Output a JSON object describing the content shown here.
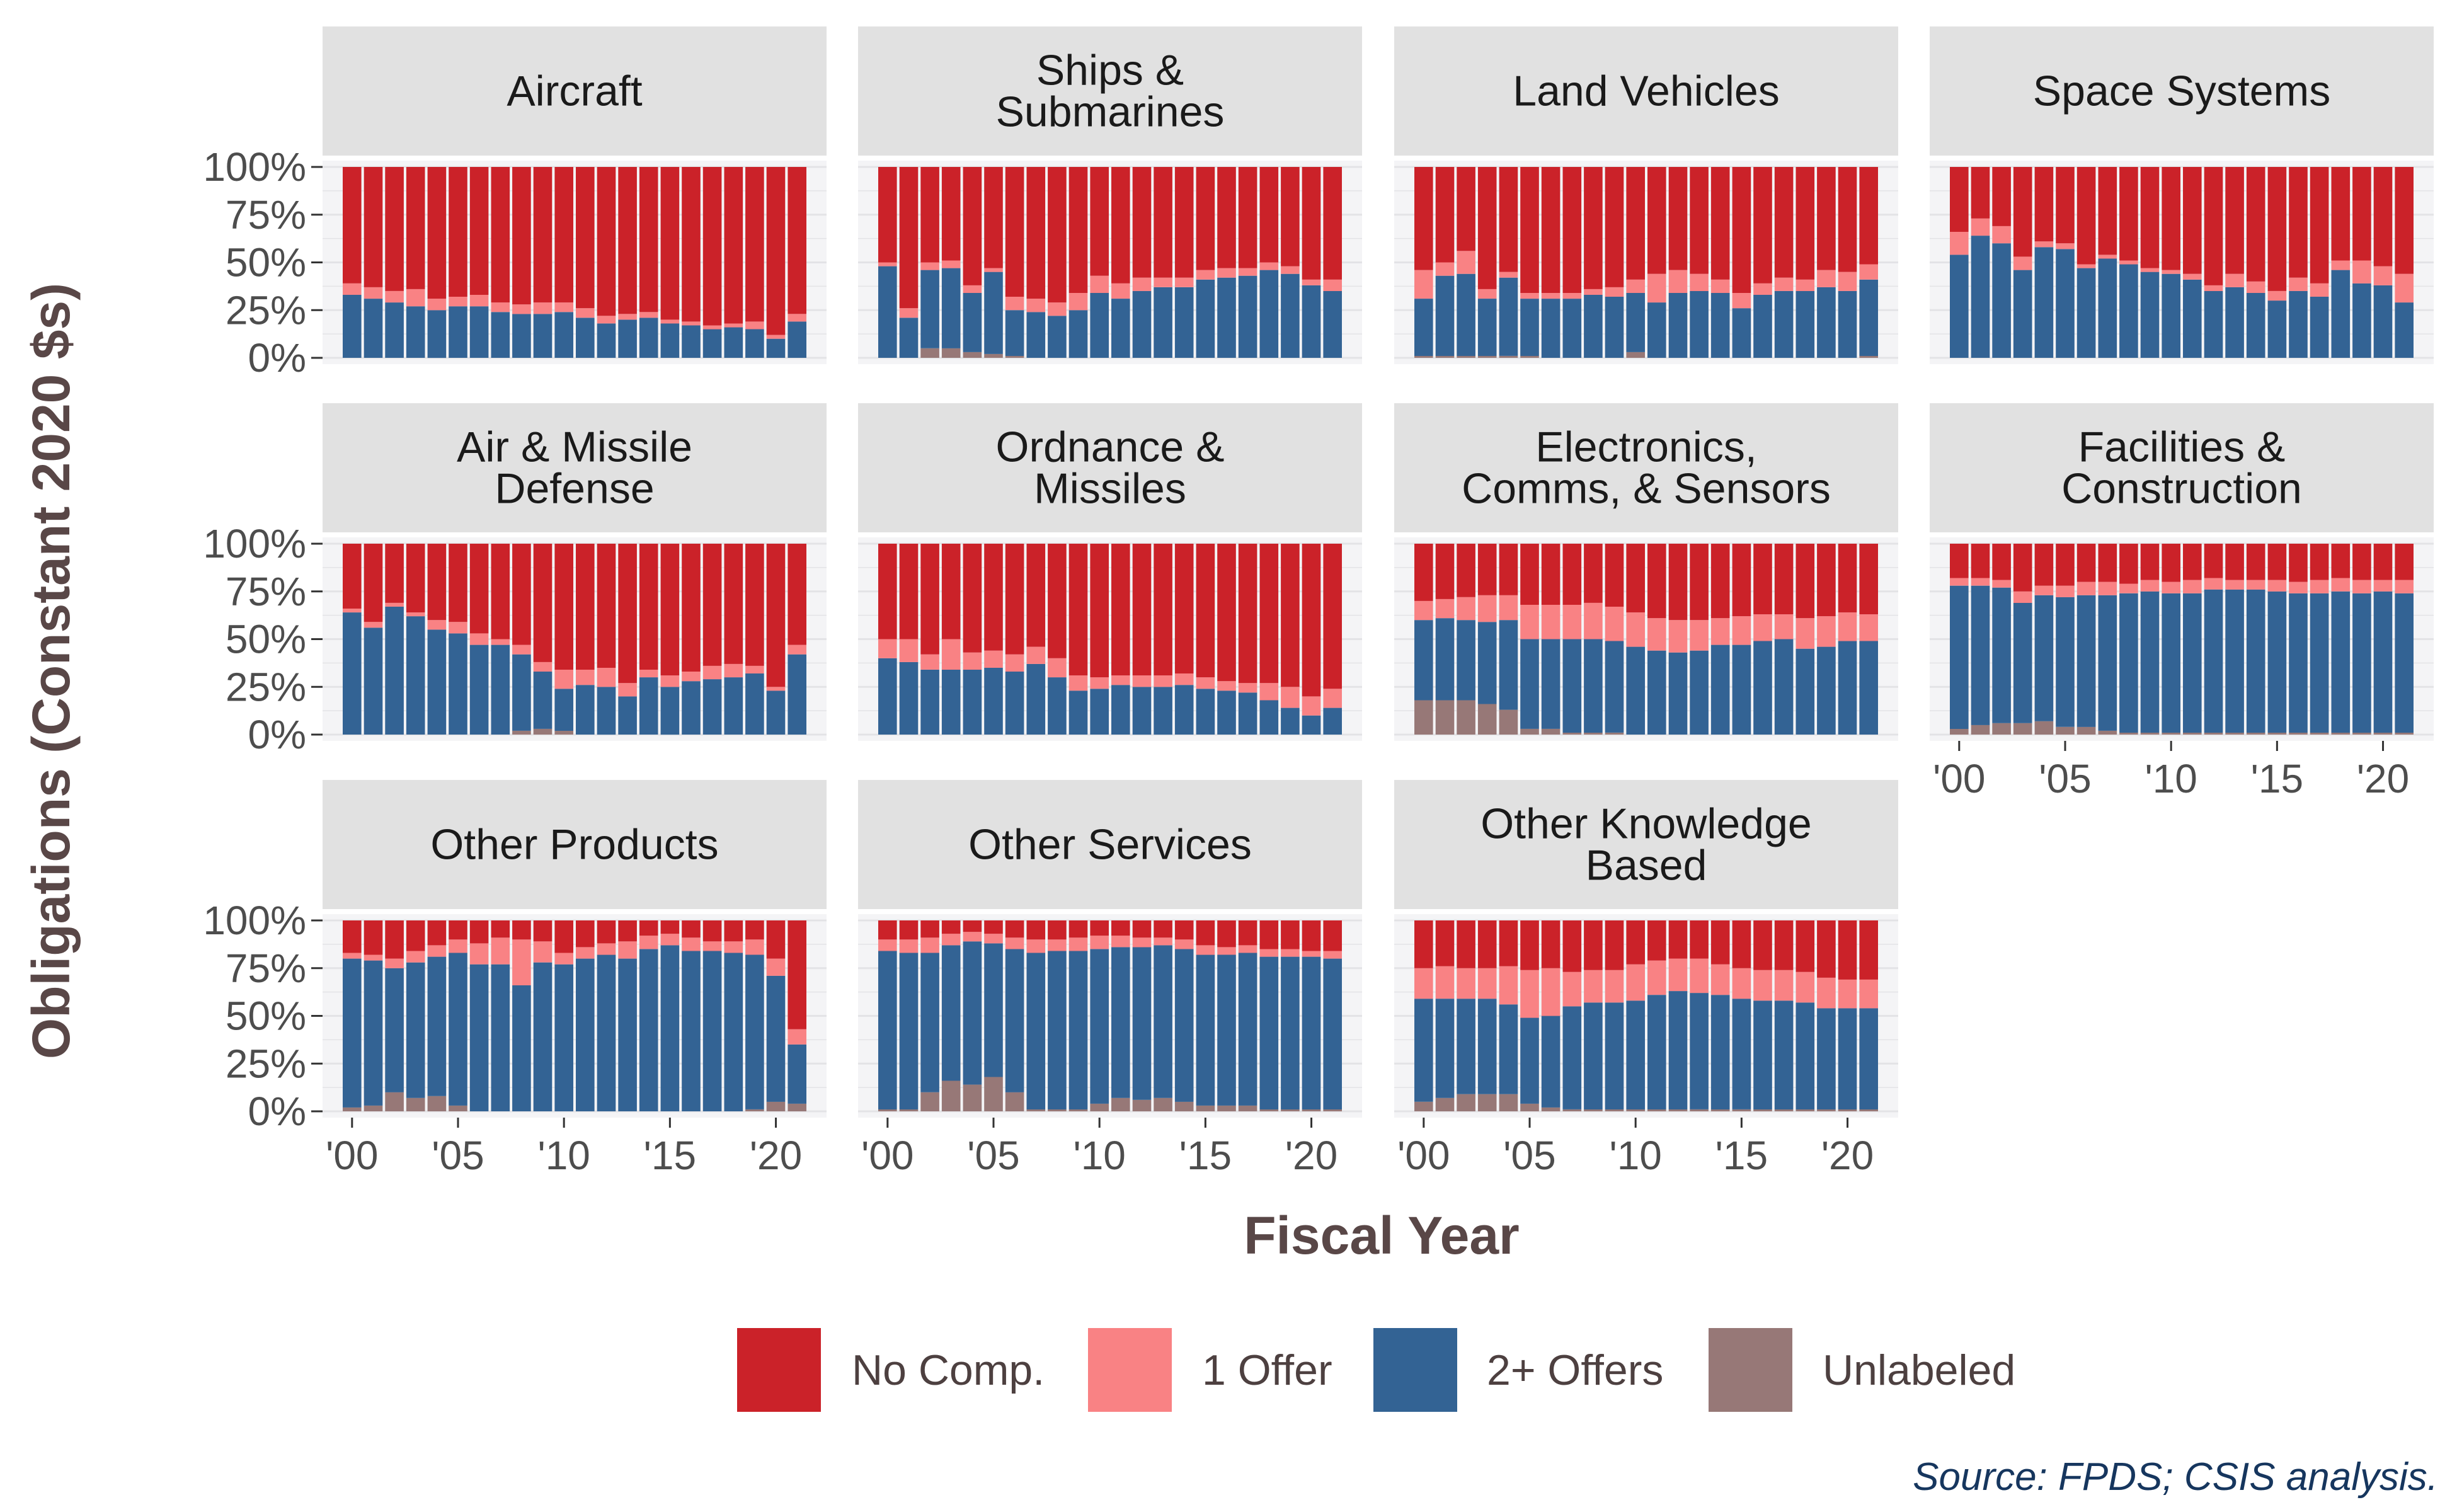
{
  "colors": {
    "no_comp": "#cb2229",
    "one_offer": "#f98284",
    "two_plus": "#336394",
    "unlabeled": "#977877",
    "strip_bg": "#e1e1e1",
    "panel_bg": "#f4f4f6",
    "grid": "#e3e3e6"
  },
  "chart_data": {
    "type": "bar",
    "stacked": true,
    "facets": true,
    "xlabel": "Fiscal Year",
    "ylabel": "Obligations (Constant 2020 $s)",
    "ylim": [
      0,
      1
    ],
    "y_ticks": [
      "0%",
      "25%",
      "50%",
      "75%",
      "100%"
    ],
    "x": [
      2000,
      2001,
      2002,
      2003,
      2004,
      2005,
      2006,
      2007,
      2008,
      2009,
      2010,
      2011,
      2012,
      2013,
      2014,
      2015,
      2016,
      2017,
      2018,
      2019,
      2020,
      2021
    ],
    "x_ticks": [
      "'00",
      "'05",
      "'10",
      "'15",
      "'20"
    ],
    "legend": {
      "position": "bottom",
      "entries": [
        {
          "key": "no_comp",
          "label": "No Comp."
        },
        {
          "key": "one_offer",
          "label": "1 Offer"
        },
        {
          "key": "two_plus",
          "label": "2+ Offers"
        },
        {
          "key": "unlabeled",
          "label": "Unlabeled"
        }
      ]
    },
    "source": "Source: FPDS; CSIS analysis.",
    "series_order_bottom_to_top": [
      "unlabeled",
      "two_plus",
      "one_offer",
      "no_comp"
    ],
    "panels": [
      {
        "title": [
          "Aircraft"
        ],
        "unlabeled": [
          0,
          0,
          0,
          0,
          0,
          0,
          0,
          0,
          0,
          0,
          0,
          0,
          0,
          0,
          0,
          0,
          0,
          0,
          0,
          0,
          0,
          0
        ],
        "two_plus": [
          0.33,
          0.31,
          0.29,
          0.27,
          0.25,
          0.27,
          0.27,
          0.24,
          0.23,
          0.23,
          0.24,
          0.21,
          0.18,
          0.2,
          0.21,
          0.18,
          0.17,
          0.15,
          0.16,
          0.15,
          0.1,
          0.19
        ],
        "one_offer": [
          0.06,
          0.06,
          0.06,
          0.09,
          0.06,
          0.05,
          0.06,
          0.05,
          0.05,
          0.06,
          0.05,
          0.05,
          0.04,
          0.03,
          0.03,
          0.02,
          0.02,
          0.02,
          0.02,
          0.04,
          0.02,
          0.04
        ]
      },
      {
        "title": [
          "Ships &",
          "Submarines"
        ],
        "unlabeled": [
          0,
          0,
          0.05,
          0.05,
          0.03,
          0.02,
          0.01,
          0,
          0,
          0,
          0,
          0,
          0,
          0,
          0,
          0,
          0,
          0,
          0,
          0,
          0,
          0
        ],
        "two_plus": [
          0.48,
          0.21,
          0.41,
          0.42,
          0.31,
          0.43,
          0.24,
          0.24,
          0.22,
          0.25,
          0.34,
          0.31,
          0.35,
          0.37,
          0.37,
          0.41,
          0.42,
          0.43,
          0.46,
          0.44,
          0.38,
          0.35
        ],
        "one_offer": [
          0.02,
          0.05,
          0.04,
          0.04,
          0.04,
          0.02,
          0.07,
          0.07,
          0.07,
          0.09,
          0.09,
          0.08,
          0.07,
          0.05,
          0.05,
          0.05,
          0.05,
          0.04,
          0.04,
          0.04,
          0.03,
          0.06
        ]
      },
      {
        "title": [
          "Land Vehicles"
        ],
        "unlabeled": [
          0.01,
          0.01,
          0.01,
          0.01,
          0.01,
          0.01,
          0,
          0,
          0,
          0,
          0.03,
          0,
          0,
          0,
          0,
          0,
          0,
          0,
          0,
          0,
          0,
          0.01
        ],
        "two_plus": [
          0.3,
          0.42,
          0.43,
          0.3,
          0.41,
          0.3,
          0.31,
          0.31,
          0.33,
          0.32,
          0.31,
          0.29,
          0.34,
          0.35,
          0.34,
          0.26,
          0.33,
          0.35,
          0.35,
          0.37,
          0.35,
          0.4
        ],
        "one_offer": [
          0.15,
          0.07,
          0.12,
          0.05,
          0.03,
          0.03,
          0.03,
          0.03,
          0.03,
          0.05,
          0.07,
          0.15,
          0.12,
          0.09,
          0.07,
          0.08,
          0.06,
          0.07,
          0.06,
          0.09,
          0.1,
          0.08
        ]
      },
      {
        "title": [
          "Space Systems"
        ],
        "unlabeled": [
          0,
          0,
          0,
          0,
          0,
          0,
          0,
          0,
          0,
          0,
          0,
          0,
          0,
          0,
          0,
          0,
          0,
          0,
          0,
          0,
          0,
          0
        ],
        "two_plus": [
          0.54,
          0.64,
          0.6,
          0.46,
          0.58,
          0.57,
          0.47,
          0.52,
          0.49,
          0.45,
          0.44,
          0.41,
          0.35,
          0.37,
          0.34,
          0.3,
          0.35,
          0.32,
          0.46,
          0.39,
          0.38,
          0.29
        ],
        "one_offer": [
          0.12,
          0.09,
          0.09,
          0.07,
          0.03,
          0.03,
          0.02,
          0.02,
          0.02,
          0.02,
          0.02,
          0.03,
          0.03,
          0.07,
          0.06,
          0.05,
          0.07,
          0.07,
          0.05,
          0.12,
          0.1,
          0.15
        ]
      },
      {
        "title": [
          "Air & Missile",
          "Defense"
        ],
        "unlabeled": [
          0,
          0,
          0,
          0,
          0,
          0,
          0,
          0,
          0.02,
          0.03,
          0.02,
          0,
          0,
          0,
          0,
          0,
          0,
          0,
          0,
          0,
          0,
          0
        ],
        "two_plus": [
          0.64,
          0.56,
          0.67,
          0.62,
          0.55,
          0.53,
          0.47,
          0.47,
          0.4,
          0.3,
          0.22,
          0.26,
          0.25,
          0.2,
          0.3,
          0.25,
          0.28,
          0.29,
          0.3,
          0.32,
          0.23,
          0.42
        ],
        "one_offer": [
          0.02,
          0.03,
          0.02,
          0.02,
          0.05,
          0.06,
          0.06,
          0.03,
          0.05,
          0.05,
          0.1,
          0.08,
          0.1,
          0.07,
          0.04,
          0.06,
          0.05,
          0.07,
          0.07,
          0.04,
          0.02,
          0.05
        ]
      },
      {
        "title": [
          "Ordnance &",
          "Missiles"
        ],
        "unlabeled": [
          0,
          0,
          0,
          0,
          0,
          0,
          0,
          0,
          0,
          0,
          0,
          0,
          0,
          0,
          0,
          0,
          0,
          0,
          0,
          0,
          0,
          0
        ],
        "two_plus": [
          0.4,
          0.38,
          0.34,
          0.34,
          0.34,
          0.35,
          0.33,
          0.37,
          0.3,
          0.23,
          0.24,
          0.26,
          0.25,
          0.25,
          0.26,
          0.24,
          0.23,
          0.22,
          0.18,
          0.14,
          0.1,
          0.14
        ],
        "one_offer": [
          0.1,
          0.12,
          0.08,
          0.16,
          0.09,
          0.09,
          0.09,
          0.09,
          0.1,
          0.08,
          0.06,
          0.05,
          0.06,
          0.06,
          0.06,
          0.06,
          0.05,
          0.05,
          0.09,
          0.11,
          0.1,
          0.1
        ]
      },
      {
        "title": [
          "Electronics,",
          "Comms, & Sensors"
        ],
        "unlabeled": [
          0.18,
          0.18,
          0.18,
          0.16,
          0.13,
          0.03,
          0.03,
          0.01,
          0.01,
          0.01,
          0,
          0,
          0,
          0,
          0,
          0,
          0,
          0,
          0,
          0,
          0,
          0
        ],
        "two_plus": [
          0.42,
          0.43,
          0.42,
          0.43,
          0.47,
          0.47,
          0.47,
          0.49,
          0.49,
          0.48,
          0.46,
          0.44,
          0.43,
          0.44,
          0.47,
          0.47,
          0.49,
          0.5,
          0.45,
          0.46,
          0.49,
          0.49
        ],
        "one_offer": [
          0.1,
          0.1,
          0.12,
          0.14,
          0.13,
          0.18,
          0.18,
          0.18,
          0.19,
          0.18,
          0.18,
          0.17,
          0.17,
          0.16,
          0.14,
          0.15,
          0.14,
          0.13,
          0.16,
          0.16,
          0.15,
          0.14
        ]
      },
      {
        "title": [
          "Facilities &",
          "Construction"
        ],
        "unlabeled": [
          0.03,
          0.05,
          0.06,
          0.06,
          0.07,
          0.04,
          0.04,
          0.02,
          0.01,
          0.01,
          0.01,
          0.01,
          0.01,
          0.01,
          0.01,
          0.01,
          0.01,
          0.01,
          0.01,
          0.01,
          0.01,
          0.01
        ],
        "two_plus": [
          0.75,
          0.73,
          0.71,
          0.63,
          0.66,
          0.68,
          0.69,
          0.71,
          0.73,
          0.74,
          0.73,
          0.73,
          0.75,
          0.75,
          0.75,
          0.74,
          0.73,
          0.73,
          0.74,
          0.73,
          0.74,
          0.73
        ],
        "one_offer": [
          0.04,
          0.04,
          0.04,
          0.06,
          0.05,
          0.06,
          0.07,
          0.07,
          0.05,
          0.06,
          0.06,
          0.07,
          0.06,
          0.05,
          0.05,
          0.06,
          0.06,
          0.07,
          0.07,
          0.07,
          0.06,
          0.07
        ]
      },
      {
        "title": [
          "Other Products"
        ],
        "unlabeled": [
          0.02,
          0.03,
          0.1,
          0.07,
          0.08,
          0.03,
          0,
          0,
          0,
          0,
          0,
          0,
          0,
          0,
          0,
          0,
          0,
          0,
          0,
          0.01,
          0.05,
          0.04
        ],
        "two_plus": [
          0.78,
          0.76,
          0.65,
          0.71,
          0.73,
          0.8,
          0.77,
          0.77,
          0.66,
          0.78,
          0.77,
          0.8,
          0.82,
          0.8,
          0.85,
          0.87,
          0.84,
          0.84,
          0.83,
          0.81,
          0.66,
          0.31
        ],
        "one_offer": [
          0.03,
          0.03,
          0.05,
          0.06,
          0.06,
          0.07,
          0.11,
          0.14,
          0.24,
          0.11,
          0.06,
          0.06,
          0.06,
          0.09,
          0.07,
          0.06,
          0.07,
          0.05,
          0.06,
          0.08,
          0.09,
          0.08
        ]
      },
      {
        "title": [
          "Other Services"
        ],
        "unlabeled": [
          0.01,
          0.01,
          0.1,
          0.16,
          0.14,
          0.18,
          0.1,
          0.01,
          0.01,
          0.01,
          0.04,
          0.07,
          0.06,
          0.07,
          0.05,
          0.03,
          0.03,
          0.03,
          0.01,
          0.01,
          0.01,
          0.01
        ],
        "two_plus": [
          0.83,
          0.82,
          0.73,
          0.71,
          0.75,
          0.7,
          0.75,
          0.82,
          0.83,
          0.83,
          0.81,
          0.79,
          0.8,
          0.8,
          0.8,
          0.79,
          0.79,
          0.8,
          0.8,
          0.8,
          0.8,
          0.79
        ],
        "one_offer": [
          0.06,
          0.07,
          0.08,
          0.06,
          0.05,
          0.05,
          0.06,
          0.07,
          0.06,
          0.07,
          0.07,
          0.06,
          0.05,
          0.04,
          0.05,
          0.05,
          0.04,
          0.04,
          0.04,
          0.04,
          0.03,
          0.04
        ]
      },
      {
        "title": [
          "Other Knowledge",
          "Based"
        ],
        "unlabeled": [
          0.05,
          0.07,
          0.09,
          0.09,
          0.09,
          0.04,
          0.02,
          0.01,
          0.01,
          0.01,
          0.01,
          0.01,
          0.01,
          0.01,
          0.01,
          0.01,
          0.01,
          0.01,
          0.01,
          0.01,
          0.01,
          0.01
        ],
        "two_plus": [
          0.54,
          0.52,
          0.5,
          0.5,
          0.47,
          0.45,
          0.48,
          0.54,
          0.56,
          0.56,
          0.57,
          0.6,
          0.62,
          0.61,
          0.6,
          0.58,
          0.57,
          0.57,
          0.56,
          0.53,
          0.53,
          0.53
        ],
        "one_offer": [
          0.16,
          0.17,
          0.16,
          0.16,
          0.2,
          0.25,
          0.25,
          0.18,
          0.17,
          0.17,
          0.19,
          0.18,
          0.17,
          0.18,
          0.16,
          0.16,
          0.16,
          0.16,
          0.16,
          0.16,
          0.15,
          0.15
        ]
      }
    ]
  }
}
